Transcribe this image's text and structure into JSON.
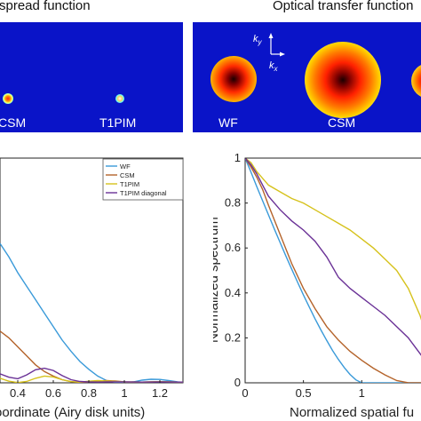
{
  "headers": {
    "left": "spread function",
    "right": "Optical transfer function"
  },
  "psf_panel": {
    "labels": [
      "CSM",
      "T1PIM"
    ]
  },
  "otf_panel": {
    "labels": [
      "WF",
      "CSM"
    ],
    "axis_ky": "k",
    "axis_ky_sub": "y",
    "axis_kx": "k",
    "axis_kx_sub": "x"
  },
  "colors": {
    "panel_bg": "#0a14c8",
    "WF": "#3a9ad9",
    "CSM": "#b4632a",
    "T1PIM": "#d6c21c",
    "T1PIM diagonal": "#6a3196"
  },
  "chart_data": [
    {
      "type": "line",
      "title": "",
      "xlabel": "oordinate (Airy disk units)",
      "ylabel": "",
      "xlim": [
        0.3,
        1.33
      ],
      "ylim": [
        0,
        1
      ],
      "x_ticks": [
        "0.4",
        "0.6",
        "0.8",
        "1",
        "1.2"
      ],
      "x_tick_values": [
        0.4,
        0.6,
        0.8,
        1.0,
        1.2
      ],
      "legend": [
        "WF",
        "CSM",
        "T1PIM",
        "T1PIM diagonal"
      ],
      "legend_position": "top-right",
      "series": [
        {
          "name": "WF",
          "x": [
            0.3,
            0.35,
            0.4,
            0.45,
            0.5,
            0.55,
            0.6,
            0.65,
            0.7,
            0.75,
            0.8,
            0.85,
            0.9,
            0.95,
            1.0,
            1.05,
            1.1,
            1.15,
            1.2,
            1.25,
            1.3,
            1.33
          ],
          "y": [
            0.62,
            0.56,
            0.49,
            0.43,
            0.37,
            0.31,
            0.25,
            0.19,
            0.14,
            0.095,
            0.06,
            0.03,
            0.01,
            0.002,
            0.0,
            0.004,
            0.012,
            0.016,
            0.015,
            0.01,
            0.004,
            0.002
          ]
        },
        {
          "name": "CSM",
          "x": [
            0.3,
            0.35,
            0.4,
            0.45,
            0.5,
            0.55,
            0.6,
            0.65,
            0.7,
            0.75,
            0.8,
            0.85,
            0.9,
            0.95,
            1.0,
            1.1,
            1.2,
            1.3,
            1.33
          ],
          "y": [
            0.23,
            0.2,
            0.16,
            0.12,
            0.08,
            0.05,
            0.03,
            0.014,
            0.005,
            0.002,
            0.004,
            0.008,
            0.01,
            0.008,
            0.004,
            0.003,
            0.005,
            0.003,
            0.003
          ]
        },
        {
          "name": "T1PIM",
          "x": [
            0.3,
            0.35,
            0.4,
            0.45,
            0.5,
            0.55,
            0.6,
            0.65,
            0.7,
            0.75,
            0.8,
            0.85,
            0.9,
            1.0,
            1.1,
            1.2,
            1.3,
            1.33
          ],
          "y": [
            0.02,
            0.007,
            0.001,
            0.006,
            0.02,
            0.03,
            0.026,
            0.014,
            0.005,
            0.003,
            0.007,
            0.01,
            0.008,
            0.004,
            0.003,
            0.005,
            0.003,
            0.003
          ]
        },
        {
          "name": "T1PIM diagonal",
          "x": [
            0.3,
            0.35,
            0.4,
            0.45,
            0.5,
            0.55,
            0.6,
            0.65,
            0.7,
            0.75,
            0.8,
            0.85,
            0.9,
            1.0,
            1.1,
            1.2,
            1.3,
            1.33
          ],
          "y": [
            0.04,
            0.025,
            0.018,
            0.035,
            0.058,
            0.065,
            0.055,
            0.032,
            0.014,
            0.006,
            0.004,
            0.003,
            0.004,
            0.004,
            0.003,
            0.004,
            0.003,
            0.003
          ]
        }
      ]
    },
    {
      "type": "line",
      "title": "",
      "xlabel": "Normalized spatial fu",
      "ylabel": "Normalized spectrum",
      "xlim": [
        0,
        1.6
      ],
      "ylim": [
        0,
        1
      ],
      "x_ticks": [
        "0",
        "0.5",
        "1"
      ],
      "x_tick_values": [
        0,
        0.5,
        1
      ],
      "y_ticks": [
        "0",
        "0.2",
        "0.4",
        "0.6",
        "0.8",
        "1"
      ],
      "y_tick_values": [
        0,
        0.2,
        0.4,
        0.6,
        0.8,
        1
      ],
      "series": [
        {
          "name": "WF",
          "x": [
            0,
            0.05,
            0.1,
            0.15,
            0.2,
            0.25,
            0.3,
            0.35,
            0.4,
            0.45,
            0.5,
            0.55,
            0.6,
            0.65,
            0.7,
            0.75,
            0.8,
            0.85,
            0.9,
            0.95,
            1.0,
            1.6
          ],
          "y": [
            1,
            0.937,
            0.873,
            0.81,
            0.747,
            0.685,
            0.624,
            0.564,
            0.505,
            0.447,
            0.391,
            0.337,
            0.285,
            0.235,
            0.188,
            0.144,
            0.104,
            0.068,
            0.037,
            0.013,
            0,
            0
          ]
        },
        {
          "name": "CSM",
          "x": [
            0,
            0.05,
            0.1,
            0.15,
            0.2,
            0.3,
            0.4,
            0.5,
            0.6,
            0.7,
            0.8,
            0.9,
            1.0,
            1.1,
            1.2,
            1.3,
            1.4,
            1.5,
            1.6
          ],
          "y": [
            1,
            0.96,
            0.915,
            0.86,
            0.79,
            0.66,
            0.53,
            0.42,
            0.33,
            0.25,
            0.19,
            0.14,
            0.1,
            0.065,
            0.035,
            0.01,
            0,
            0,
            0
          ]
        },
        {
          "name": "T1PIM",
          "x": [
            0,
            0.05,
            0.1,
            0.15,
            0.2,
            0.3,
            0.4,
            0.5,
            0.6,
            0.7,
            0.8,
            0.9,
            1.0,
            1.1,
            1.2,
            1.3,
            1.4,
            1.5,
            1.55,
            1.6
          ],
          "y": [
            1,
            0.98,
            0.94,
            0.91,
            0.88,
            0.85,
            0.82,
            0.8,
            0.77,
            0.74,
            0.71,
            0.68,
            0.64,
            0.6,
            0.55,
            0.5,
            0.42,
            0.3,
            0.22,
            0.15
          ]
        },
        {
          "name": "T1PIM diagonal",
          "x": [
            0,
            0.05,
            0.1,
            0.15,
            0.2,
            0.3,
            0.4,
            0.5,
            0.6,
            0.7,
            0.8,
            0.9,
            1.0,
            1.1,
            1.2,
            1.3,
            1.4,
            1.5,
            1.6
          ],
          "y": [
            1,
            0.97,
            0.93,
            0.88,
            0.83,
            0.77,
            0.72,
            0.68,
            0.63,
            0.56,
            0.47,
            0.42,
            0.38,
            0.34,
            0.3,
            0.25,
            0.2,
            0.13,
            0.06
          ]
        }
      ]
    }
  ]
}
